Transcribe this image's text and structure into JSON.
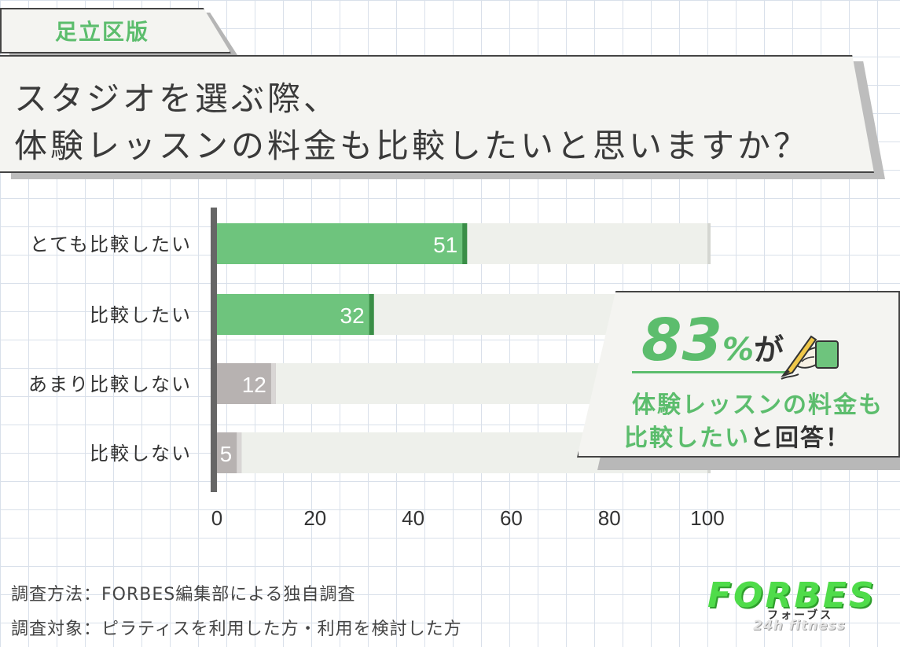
{
  "tag": {
    "label": "足立区版"
  },
  "title": {
    "line1": "スタジオを選ぶ際、",
    "line2": "体験レッスンの料金も比較したいと思いますか？"
  },
  "chart_data": {
    "type": "bar",
    "orientation": "horizontal",
    "categories": [
      "とても比較したい",
      "比較したい",
      "あまり比較しない",
      "比較しない"
    ],
    "values": [
      51,
      32,
      12,
      5
    ],
    "data_labels": [
      "51",
      "32",
      "12",
      "5"
    ],
    "xlim": [
      0,
      100
    ],
    "xticks": [
      0,
      20,
      40,
      60,
      80,
      100
    ],
    "xtick_labels": [
      "0",
      "20",
      "40",
      "60",
      "80",
      "100"
    ],
    "title": "",
    "xlabel": "",
    "ylabel": "",
    "grid": true,
    "colors": {
      "positive": "#6ec47d",
      "positive_edge": "#3a8e47",
      "negative": "#b7b2b1",
      "negative_edge": "#d9d6d5",
      "track": "#eef0eb",
      "track_edge": "#d4d6d1",
      "axis": "#666666"
    }
  },
  "callout": {
    "percent": "83",
    "percent_suffix": "%",
    "particle": "が",
    "line1": "体験レッスンの料金も",
    "line2_green": "比較したい",
    "line2_rest": "と回答！",
    "icon": "pencil-hand-icon"
  },
  "footnotes": {
    "method": "調査方法：FORBES編集部による独自調査",
    "target": "調査対象：ピラティスを利用した方・利用を検討した方"
  },
  "logo": {
    "main": "FORBES",
    "kana": "フォーブス",
    "sub": "24h fitness"
  }
}
